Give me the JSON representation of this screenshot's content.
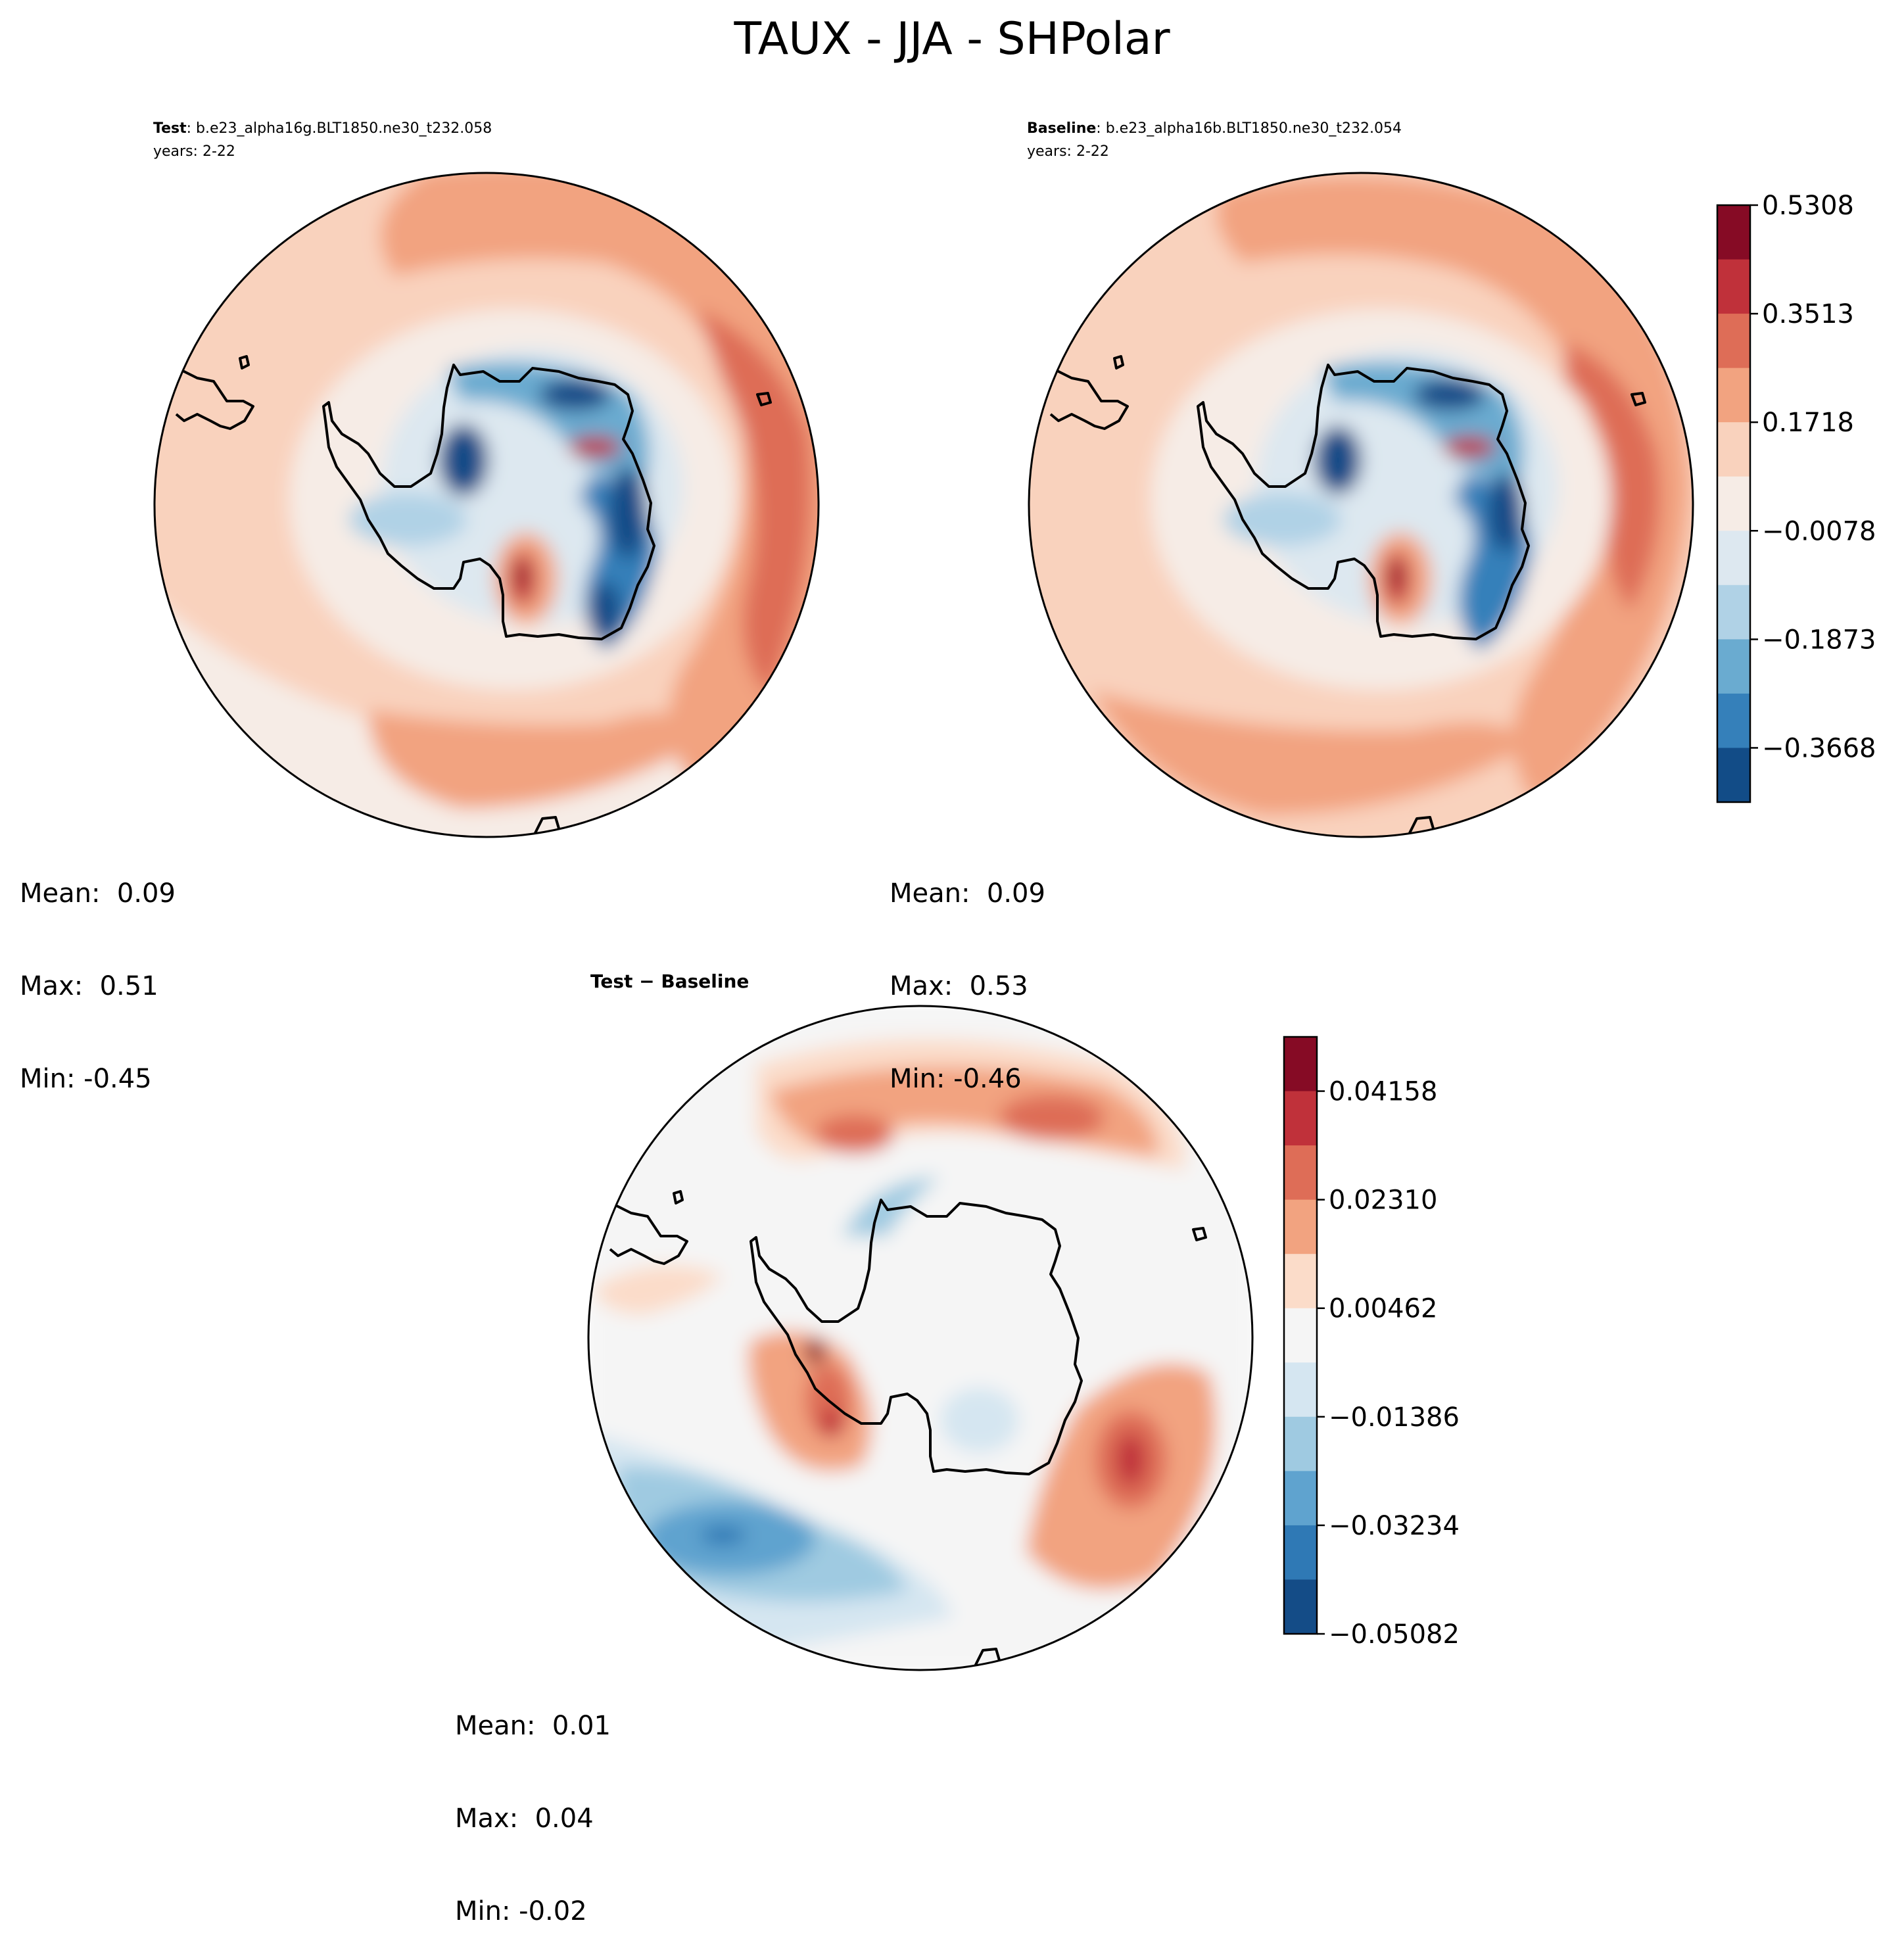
{
  "figure": {
    "title": "TAUX - JJA - SHPolar"
  },
  "panels": [
    {
      "id": "test",
      "label_bold": "Test",
      "label_rest": ": b.e23_alpha16g.BLT1850.ne30_t232.058",
      "subtitle": "years: 2-22",
      "stats": {
        "mean": "Mean:  0.09",
        "max": "Max:  0.51",
        "min": "Min: -0.45"
      }
    },
    {
      "id": "baseline",
      "label_bold": "Baseline",
      "label_rest": ": b.e23_alpha16b.BLT1850.ne30_t232.054",
      "subtitle": "years: 2-22",
      "stats": {
        "mean": "Mean:  0.09",
        "max": "Max:  0.53",
        "min": "Min: -0.46"
      }
    },
    {
      "id": "diff",
      "label_bold": "Test − Baseline",
      "label_rest": "",
      "subtitle": "",
      "stats": {
        "mean": "Mean:  0.01",
        "max": "Max:  0.04",
        "min": "Min: -0.02"
      }
    }
  ],
  "chart_data": [
    {
      "type": "heatmap",
      "panel": "test",
      "projection": "south polar stereographic",
      "field": "TAUX",
      "levels": [
        -0.5463,
        -0.3668,
        -0.1873,
        -0.0078,
        0.1718,
        0.3513,
        0.5308
      ],
      "summary": {
        "mean": 0.09,
        "max": 0.51,
        "min": -0.45
      }
    },
    {
      "type": "heatmap",
      "panel": "baseline",
      "projection": "south polar stereographic",
      "field": "TAUX",
      "levels": [
        -0.5463,
        -0.3668,
        -0.1873,
        -0.0078,
        0.1718,
        0.3513,
        0.5308
      ],
      "summary": {
        "mean": 0.09,
        "max": 0.53,
        "min": -0.46
      }
    },
    {
      "type": "heatmap",
      "panel": "diff",
      "projection": "south polar stereographic",
      "field": "TAUX difference",
      "levels": [
        -0.05082,
        -0.03234,
        -0.01386,
        0.00462,
        0.0231,
        0.04158
      ],
      "summary": {
        "mean": 0.01,
        "max": 0.04,
        "min": -0.02
      }
    }
  ],
  "colorbars": [
    {
      "id": "main",
      "ticks": [
        "0.5308",
        "0.3513",
        "0.1718",
        "−0.0078",
        "−0.1873",
        "−0.3668"
      ],
      "colors_top_to_bottom": [
        "#860b25",
        "#c0313a",
        "#de6d57",
        "#f2a380",
        "#f9d2bd",
        "#f6ece6",
        "#dde8f0",
        "#b0d2e6",
        "#6aabd0",
        "#3580ba",
        "#124c87"
      ]
    },
    {
      "id": "diff",
      "ticks": [
        "0.04158",
        "0.02310",
        "0.00462",
        "−0.01386",
        "−0.03234",
        "−0.05082"
      ],
      "colors_top_to_bottom": [
        "#860b25",
        "#c0313a",
        "#de6d57",
        "#f2a380",
        "#fbdcc9",
        "#f5f5f5",
        "#d5e6f1",
        "#9fcae1",
        "#5fa3cf",
        "#2f79b5",
        "#144c87"
      ]
    }
  ],
  "colors": {
    "ocean_red_1": "#f2a380",
    "ocean_red_2": "#de6d57",
    "light_pink": "#f9d2bd",
    "near_white": "#f5ece8",
    "light_blue": "#dde8f0",
    "mid_blue": "#6aabd0",
    "dark_blue": "#124c87",
    "dark_red": "#860b25"
  }
}
